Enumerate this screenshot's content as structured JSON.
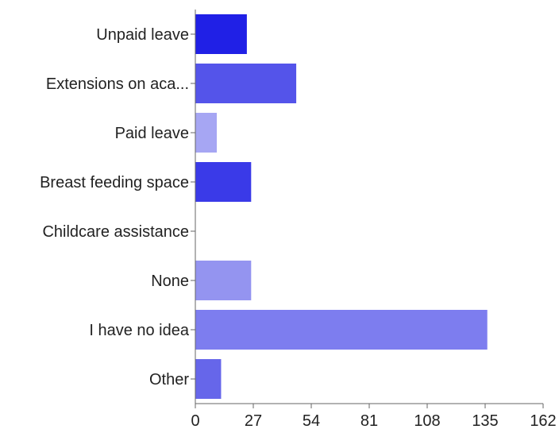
{
  "chart_data": {
    "type": "bar",
    "orientation": "horizontal",
    "categories": [
      "Unpaid leave",
      "Extensions on aca...",
      "Paid leave",
      "Breast feeding space",
      "Childcare assistance",
      "None",
      "I have no idea",
      "Other"
    ],
    "values": [
      24,
      47,
      10,
      26,
      0,
      26,
      136,
      12
    ],
    "bar_colors": [
      "#2020e6",
      "#5454ea",
      "#a6a6f3",
      "#3a3ae8",
      "#6a6aee",
      "#9494f0",
      "#7d7def",
      "#6666ea"
    ],
    "x_ticks": [
      0,
      27,
      54,
      81,
      108,
      135,
      162
    ],
    "xlim": [
      0,
      162
    ],
    "title": "",
    "xlabel": "",
    "ylabel": "",
    "grid": false,
    "legend": "none"
  }
}
